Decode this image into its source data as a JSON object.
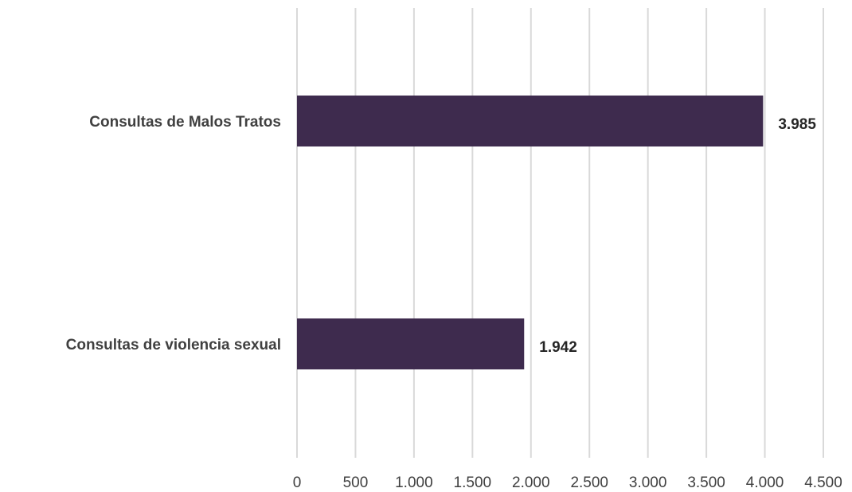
{
  "chart_data": {
    "type": "bar",
    "orientation": "horizontal",
    "categories": [
      "Consultas de Malos Tratos",
      "Consultas de violencia sexual"
    ],
    "values": [
      3985,
      1942
    ],
    "data_labels": [
      "3.985",
      "1.942"
    ],
    "xlim": [
      0,
      4500
    ],
    "x_ticks": [
      0,
      500,
      1000,
      1500,
      2000,
      2500,
      3000,
      3500,
      4000,
      4500
    ],
    "x_tick_labels": [
      "0",
      "500",
      "1.000",
      "1.500",
      "2.000",
      "2.500",
      "3.000",
      "3.500",
      "4.000",
      "4.500"
    ],
    "grid": true,
    "legend": "none",
    "bar_color": "#3e2b4e",
    "title": "",
    "xlabel": "",
    "ylabel": ""
  }
}
